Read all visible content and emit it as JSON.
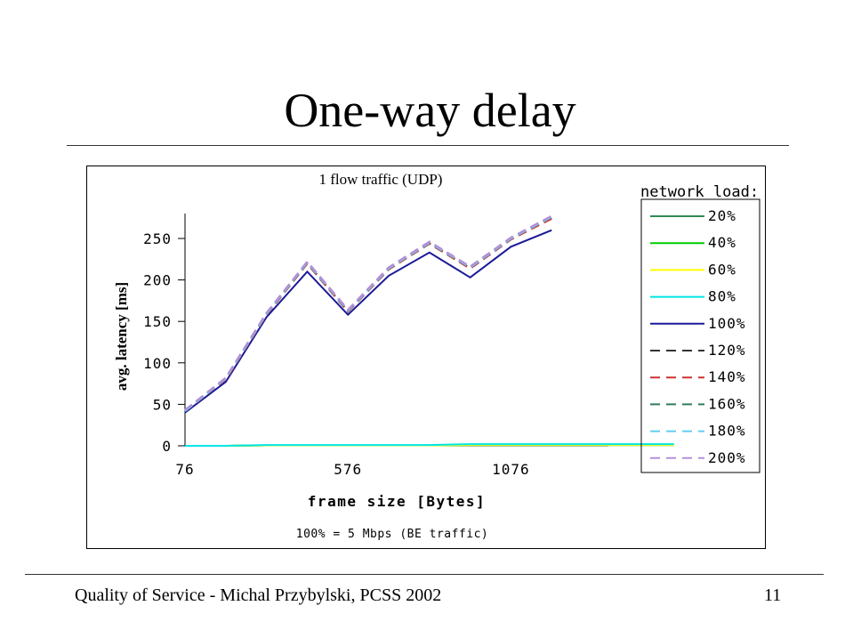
{
  "slide": {
    "title": "One-way delay",
    "footer": "Quality of Service - Michal Przybylski, PCSS 2002",
    "page_number": "11"
  },
  "chart_data": {
    "type": "line",
    "title": "1 flow traffic (UDP)",
    "xlabel": "frame size [Bytes]",
    "ylabel": "avg. latency [ms]",
    "note": "100% = 5 Mbps (BE traffic)",
    "legend_title": "network load:",
    "legend_position": "right",
    "x_tick_labels": [
      "76",
      "576",
      "1076"
    ],
    "y_ticks": [
      0,
      50,
      100,
      150,
      200,
      250
    ],
    "ylim": [
      0,
      280
    ],
    "grid": false,
    "categories": [
      "76",
      "",
      "",
      "",
      "576",
      "",
      "",
      "",
      "1076",
      "",
      "",
      "",
      ""
    ],
    "series": [
      {
        "name": "20%",
        "color": "#2e8b57",
        "dash": "solid",
        "values": [
          0,
          0,
          0.5,
          0.5,
          0.5,
          0.5,
          0.5,
          1,
          1,
          1,
          1,
          1,
          1
        ]
      },
      {
        "name": "40%",
        "color": "#00cc00",
        "dash": "solid",
        "values": [
          0,
          0,
          0.5,
          0.5,
          0.5,
          0.5,
          0.5,
          1,
          1,
          1,
          1,
          1,
          1
        ]
      },
      {
        "name": "60%",
        "color": "#ffff00",
        "dash": "solid",
        "values": [
          0,
          0,
          0.5,
          0.5,
          0.5,
          0.5,
          0.5,
          1,
          1,
          1,
          1,
          1,
          1
        ]
      },
      {
        "name": "80%",
        "color": "#00e5e5",
        "dash": "solid",
        "values": [
          0,
          0,
          1,
          1,
          1,
          1,
          1,
          2,
          2,
          2,
          2,
          2,
          2
        ]
      },
      {
        "name": "100%",
        "color": "#1a1a99",
        "dash": "solid",
        "values": [
          40,
          77,
          155,
          210,
          158,
          205,
          233,
          203,
          240,
          260,
          null,
          null,
          null
        ]
      },
      {
        "name": "120%",
        "color": "#333333",
        "dash": "dashed",
        "values": [
          42,
          80,
          158,
          220,
          162,
          213,
          244,
          214,
          249,
          275,
          null,
          null,
          null
        ]
      },
      {
        "name": "140%",
        "color": "#cc3333",
        "dash": "dashed",
        "values": [
          42,
          80,
          158,
          220,
          162,
          213,
          244,
          214,
          249,
          274,
          null,
          null,
          null
        ]
      },
      {
        "name": "160%",
        "color": "#2e7d5b",
        "dash": "dashed",
        "values": [
          42,
          81,
          159,
          221,
          163,
          214,
          245,
          215,
          250,
          276,
          null,
          null,
          null
        ]
      },
      {
        "name": "180%",
        "color": "#66ccee",
        "dash": "dashed",
        "values": [
          42,
          81,
          159,
          221,
          163,
          214,
          245,
          215,
          250,
          276,
          null,
          null,
          null
        ]
      },
      {
        "name": "200%",
        "color": "#b38fd9",
        "dash": "dashed",
        "values": [
          43,
          82,
          160,
          222,
          164,
          215,
          246,
          216,
          251,
          277,
          null,
          null,
          null
        ]
      }
    ]
  }
}
